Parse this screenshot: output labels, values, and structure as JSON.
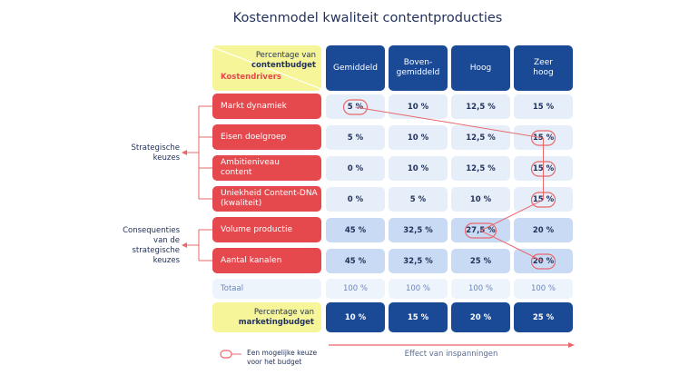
{
  "title": "Kostenmodel kwaliteit contentproducties",
  "header": {
    "corner_top_line1": "Percentage van",
    "corner_top_line2": "contentbudget",
    "corner_bottom": "Kostendrivers",
    "columns": [
      "Gemiddeld",
      "Boven-\ngemiddeld",
      "Hoog",
      "Zeer\nhoog"
    ]
  },
  "rows": [
    {
      "label": "Markt dynamiek",
      "values": [
        "5 %",
        "10 %",
        "12,5 %",
        "15 %"
      ],
      "group": "strategic",
      "selected": 0
    },
    {
      "label": "Eisen doelgroep",
      "values": [
        "5 %",
        "10 %",
        "12,5 %",
        "15 %"
      ],
      "group": "strategic",
      "selected": 3
    },
    {
      "label": "Ambitieniveau\ncontent",
      "values": [
        "0 %",
        "10 %",
        "12,5 %",
        "15 %"
      ],
      "group": "strategic",
      "selected": 3
    },
    {
      "label": "Uniekheid Content-DNA\n(kwaliteit)",
      "values": [
        "0 %",
        "5 %",
        "10 %",
        "15 %"
      ],
      "group": "strategic",
      "selected": 3
    },
    {
      "label": "Volume productie",
      "values": [
        "45 %",
        "32,5 %",
        "27,5 %",
        "20 %"
      ],
      "group": "consequence",
      "selected": 2
    },
    {
      "label": "Aantal kanalen",
      "values": [
        "45 %",
        "32,5 %",
        "25 %",
        "20 %"
      ],
      "group": "consequence",
      "selected": 3
    }
  ],
  "total": {
    "label": "Totaal",
    "values": [
      "100 %",
      "100 %",
      "100 %",
      "100 %"
    ]
  },
  "marketing": {
    "line1": "Percentage van",
    "line2": "marketingbudget",
    "values": [
      "10 %",
      "15 %",
      "20 %",
      "25 %"
    ]
  },
  "groups": {
    "strategic": "Strategische\nkeuzes",
    "consequence": "Consequenties\nvan de\nstrategische\nkeuzes"
  },
  "legend": "Een mogelijke keuze\nvoor het budget",
  "effect_label": "Effect van inspanningen",
  "colors": {
    "driver": "#e5484d",
    "header": "#1a4a96",
    "highlight": "#f7f59a",
    "selection": "#e8686c",
    "text": "#23325a"
  }
}
